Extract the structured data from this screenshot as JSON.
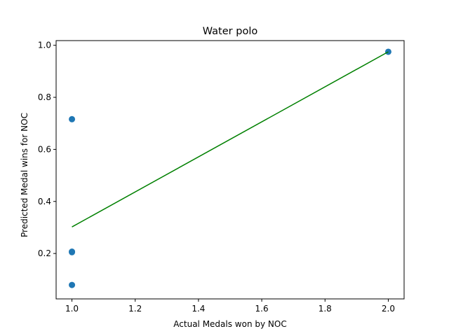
{
  "chart_data": {
    "type": "scatter",
    "title": "Water polo",
    "xlabel": "Actual Medals won by NOC",
    "ylabel": "Predicted Medal wins for NOC",
    "xlim": [
      0.95,
      2.05
    ],
    "ylim": [
      0.0255,
      1.018
    ],
    "x_ticks": [
      1.0,
      1.2,
      1.4,
      1.6,
      1.8,
      2.0
    ],
    "x_tick_labels": [
      "1.0",
      "1.2",
      "1.4",
      "1.6",
      "1.8",
      "2.0"
    ],
    "y_ticks": [
      0.2,
      0.4,
      0.6,
      0.8,
      1.0
    ],
    "y_tick_labels": [
      "0.2",
      "0.4",
      "0.6",
      "0.8",
      "1.0"
    ],
    "grid": false,
    "series": [
      {
        "kind": "scatter",
        "color": "#1f77b4",
        "points": [
          {
            "x": 1.0,
            "y": 0.716
          },
          {
            "x": 1.0,
            "y": 0.207
          },
          {
            "x": 1.0,
            "y": 0.205
          },
          {
            "x": 1.0,
            "y": 0.079
          },
          {
            "x": 2.0,
            "y": 0.975
          }
        ]
      },
      {
        "kind": "line",
        "color": "#008000",
        "points": [
          {
            "x": 1.0,
            "y": 0.302
          },
          {
            "x": 2.0,
            "y": 0.975
          }
        ]
      }
    ]
  }
}
